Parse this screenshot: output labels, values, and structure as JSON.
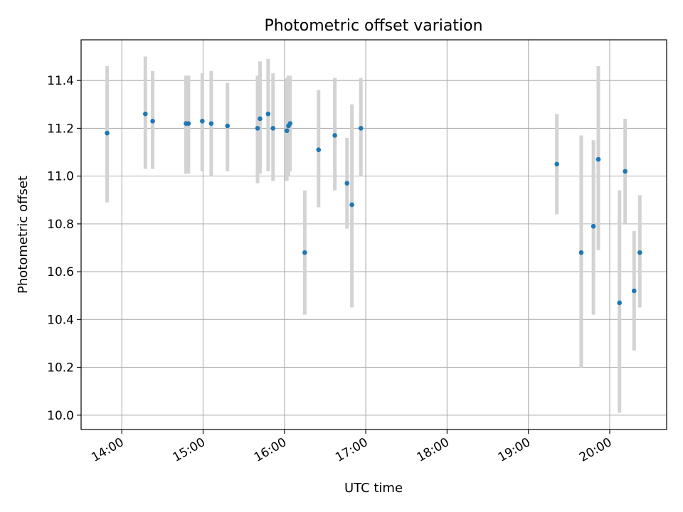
{
  "chart_data": {
    "type": "scatter",
    "title": "Photometric offset variation",
    "xlabel": "UTC time",
    "ylabel": "Photometric offset",
    "x_unit": "hours UTC",
    "xlim": [
      13.5,
      20.7
    ],
    "ylim": [
      9.94,
      11.57
    ],
    "grid": true,
    "colors": {
      "point": "#1f77b4",
      "errorbar": "#d3d3d3",
      "grid": "#b0b0b0"
    },
    "x_ticks": [
      {
        "value": 14,
        "label": "14:00"
      },
      {
        "value": 15,
        "label": "15:00"
      },
      {
        "value": 16,
        "label": "16:00"
      },
      {
        "value": 17,
        "label": "17:00"
      },
      {
        "value": 18,
        "label": "18:00"
      },
      {
        "value": 19,
        "label": "19:00"
      },
      {
        "value": 20,
        "label": "20:00"
      }
    ],
    "y_ticks": [
      {
        "value": 10.0,
        "label": "10.0"
      },
      {
        "value": 10.2,
        "label": "10.2"
      },
      {
        "value": 10.4,
        "label": "10.4"
      },
      {
        "value": 10.6,
        "label": "10.6"
      },
      {
        "value": 10.8,
        "label": "10.8"
      },
      {
        "value": 11.0,
        "label": "11.0"
      },
      {
        "value": 11.2,
        "label": "11.2"
      },
      {
        "value": 11.4,
        "label": "11.4"
      }
    ],
    "points": [
      {
        "x": 13.82,
        "y": 11.18,
        "ylow": 10.89,
        "yhigh": 11.46
      },
      {
        "x": 14.29,
        "y": 11.26,
        "ylow": 11.03,
        "yhigh": 11.5
      },
      {
        "x": 14.38,
        "y": 11.23,
        "ylow": 11.03,
        "yhigh": 11.44
      },
      {
        "x": 14.79,
        "y": 11.22,
        "ylow": 11.01,
        "yhigh": 11.42
      },
      {
        "x": 14.82,
        "y": 11.22,
        "ylow": 11.01,
        "yhigh": 11.42
      },
      {
        "x": 14.99,
        "y": 11.23,
        "ylow": 11.02,
        "yhigh": 11.43
      },
      {
        "x": 15.1,
        "y": 11.22,
        "ylow": 11.0,
        "yhigh": 11.44
      },
      {
        "x": 15.3,
        "y": 11.21,
        "ylow": 11.02,
        "yhigh": 11.39
      },
      {
        "x": 15.67,
        "y": 11.2,
        "ylow": 10.97,
        "yhigh": 11.42
      },
      {
        "x": 15.7,
        "y": 11.24,
        "ylow": 11.01,
        "yhigh": 11.48
      },
      {
        "x": 15.8,
        "y": 11.26,
        "ylow": 11.02,
        "yhigh": 11.49
      },
      {
        "x": 15.86,
        "y": 11.2,
        "ylow": 10.98,
        "yhigh": 11.43
      },
      {
        "x": 16.03,
        "y": 11.19,
        "ylow": 10.98,
        "yhigh": 11.41
      },
      {
        "x": 16.05,
        "y": 11.21,
        "ylow": 11.0,
        "yhigh": 11.42
      },
      {
        "x": 16.07,
        "y": 11.22,
        "ylow": 11.02,
        "yhigh": 11.42
      },
      {
        "x": 16.25,
        "y": 10.68,
        "ylow": 10.42,
        "yhigh": 10.94
      },
      {
        "x": 16.42,
        "y": 11.11,
        "ylow": 10.87,
        "yhigh": 11.36
      },
      {
        "x": 16.62,
        "y": 11.17,
        "ylow": 10.94,
        "yhigh": 11.41
      },
      {
        "x": 16.77,
        "y": 10.97,
        "ylow": 10.78,
        "yhigh": 11.16
      },
      {
        "x": 16.83,
        "y": 10.88,
        "ylow": 10.45,
        "yhigh": 11.3
      },
      {
        "x": 16.94,
        "y": 11.2,
        "ylow": 11.0,
        "yhigh": 11.41
      },
      {
        "x": 19.35,
        "y": 11.05,
        "ylow": 10.84,
        "yhigh": 11.26
      },
      {
        "x": 19.65,
        "y": 10.68,
        "ylow": 10.2,
        "yhigh": 11.17
      },
      {
        "x": 19.8,
        "y": 10.79,
        "ylow": 10.42,
        "yhigh": 11.15
      },
      {
        "x": 19.86,
        "y": 11.07,
        "ylow": 10.69,
        "yhigh": 11.46
      },
      {
        "x": 20.12,
        "y": 10.47,
        "ylow": 10.01,
        "yhigh": 10.94
      },
      {
        "x": 20.19,
        "y": 11.02,
        "ylow": 10.8,
        "yhigh": 11.24
      },
      {
        "x": 20.3,
        "y": 10.52,
        "ylow": 10.27,
        "yhigh": 10.77
      },
      {
        "x": 20.37,
        "y": 10.68,
        "ylow": 10.45,
        "yhigh": 10.92
      }
    ]
  }
}
